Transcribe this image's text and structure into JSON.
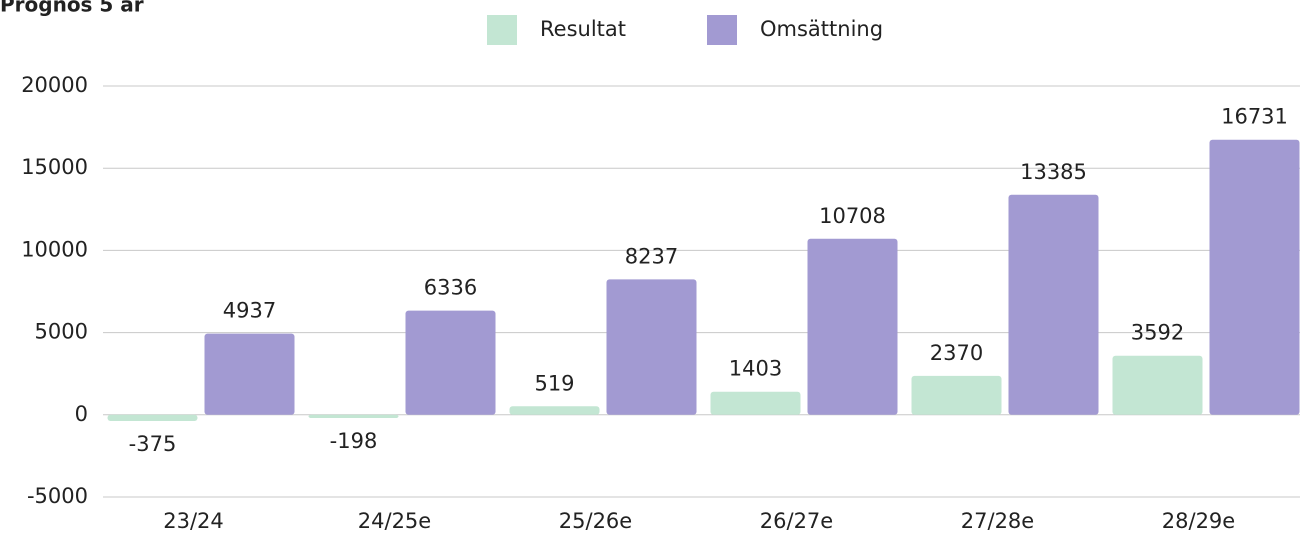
{
  "chart_data": {
    "type": "bar",
    "title": "Prognos 5 år",
    "categories": [
      "23/24",
      "24/25e",
      "25/26e",
      "26/27e",
      "27/28e",
      "28/29e"
    ],
    "series": [
      {
        "name": "Resultat",
        "color": "#c3e6d3",
        "values": [
          -375,
          -198,
          519,
          1403,
          2370,
          3592
        ]
      },
      {
        "name": "Omsättning",
        "color": "#a29ad2",
        "values": [
          4937,
          6336,
          8237,
          10708,
          13385,
          16731
        ]
      }
    ],
    "ylim": [
      -5000,
      20000
    ],
    "yticks": [
      -5000,
      0,
      5000,
      10000,
      15000,
      20000
    ],
    "grid": true
  }
}
